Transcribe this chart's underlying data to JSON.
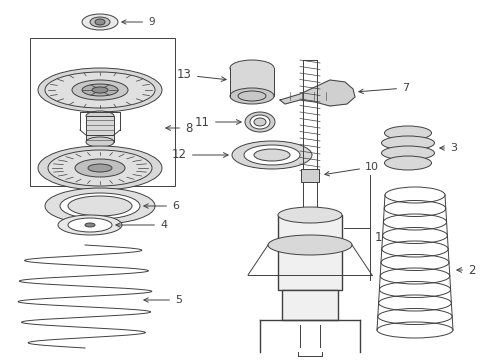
{
  "bg_color": "#ffffff",
  "line_color": "#404040",
  "fig_w": 4.89,
  "fig_h": 3.6,
  "dpi": 100
}
